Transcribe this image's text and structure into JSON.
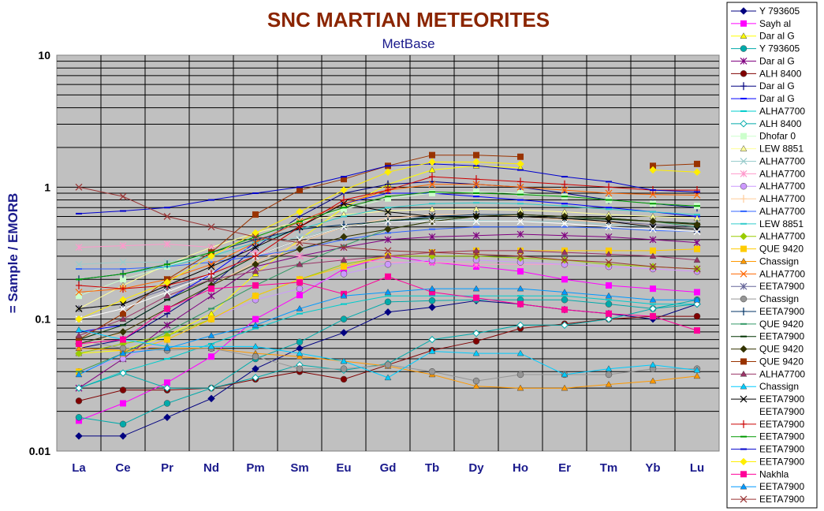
{
  "chart_data": {
    "type": "line",
    "title": "SNC MARTIAN METEORITES",
    "subtitle": "MetBase",
    "ylabel": "= Sample / EMORB",
    "xlabel": "",
    "yscale": "log",
    "ylim": [
      0.01,
      10
    ],
    "yticks": [
      "10",
      "1",
      "0.1",
      "0.01"
    ],
    "grid": true,
    "legend_position": "right",
    "categories": [
      "La",
      "Ce",
      "Pr",
      "Nd",
      "Pm",
      "Sm",
      "Eu",
      "Gd",
      "Tb",
      "Dy",
      "Ho",
      "Er",
      "Tm",
      "Yb",
      "Lu"
    ],
    "series": [
      {
        "name": "Y 793605",
        "color": "#000080",
        "marker": "diamond",
        "values": [
          0.013,
          0.013,
          0.018,
          0.025,
          0.042,
          0.06,
          0.079,
          0.113,
          0.123,
          0.138,
          0.13,
          0.118,
          0.11,
          0.1,
          0.13
        ]
      },
      {
        "name": "Sayh al",
        "color": "#ff00ff",
        "marker": "square",
        "values": [
          0.017,
          0.023,
          0.033,
          0.052,
          0.1,
          0.152,
          0.24,
          0.3,
          0.27,
          0.25,
          0.23,
          0.2,
          0.18,
          0.17,
          0.16
        ]
      },
      {
        "name": "Dar al G",
        "color": "#ffff00",
        "marker": "triangle",
        "values": [
          0.055,
          0.058,
          0.075,
          0.11,
          0.22,
          0.4,
          0.7,
          1.05,
          1.35,
          1.45,
          1.4,
          null,
          null,
          null,
          null
        ]
      },
      {
        "name": "Y 793605",
        "color": "#00aaaa",
        "marker": "circle",
        "values": [
          0.018,
          0.016,
          0.023,
          0.03,
          0.05,
          0.067,
          0.1,
          0.135,
          0.138,
          0.14,
          0.14,
          0.14,
          0.13,
          0.12,
          0.14
        ]
      },
      {
        "name": "Dar al G",
        "color": "#800080",
        "marker": "star",
        "values": [
          0.03,
          0.05,
          0.09,
          0.15,
          0.25,
          0.3,
          0.35,
          0.4,
          0.42,
          0.43,
          0.44,
          0.43,
          0.42,
          0.4,
          0.38
        ]
      },
      {
        "name": "ALH 8400",
        "color": "#800000",
        "marker": "circle",
        "values": [
          0.024,
          0.029,
          0.029,
          0.03,
          0.035,
          0.04,
          0.035,
          0.045,
          0.058,
          0.068,
          0.085,
          0.092,
          0.1,
          0.105,
          0.105
        ]
      },
      {
        "name": "Dar al G",
        "color": "#000080",
        "marker": "plus",
        "values": [
          0.06,
          0.07,
          0.11,
          0.18,
          0.35,
          0.6,
          0.9,
          1.05,
          1.1,
          1.05,
          1.0,
          0.9,
          0.8,
          0.75,
          0.7
        ]
      },
      {
        "name": "Dar al G",
        "color": "#0000ff",
        "marker": "dash",
        "values": [
          0.08,
          0.09,
          0.14,
          0.22,
          0.38,
          0.55,
          0.75,
          0.9,
          0.9,
          0.85,
          0.8,
          0.75,
          0.7,
          0.65,
          0.6
        ]
      },
      {
        "name": "ALHA7700",
        "color": "#00cccc",
        "marker": "dash",
        "values": [
          0.03,
          0.04,
          0.05,
          0.065,
          0.085,
          0.11,
          0.13,
          0.15,
          0.15,
          0.15,
          0.15,
          0.15,
          0.14,
          0.13,
          0.13
        ]
      },
      {
        "name": "ALH 8400",
        "color": "#00aaaa",
        "marker": "open-diamond",
        "values": [
          0.03,
          0.039,
          0.03,
          0.03,
          0.036,
          0.045,
          0.041,
          0.046,
          0.07,
          0.078,
          0.09,
          0.09,
          0.1,
          0.12,
          0.13
        ]
      },
      {
        "name": "Dhofar 0",
        "color": "#ccffcc",
        "marker": "square",
        "values": [
          0.15,
          0.2,
          0.25,
          0.32,
          0.42,
          0.55,
          0.68,
          0.82,
          0.9,
          0.92,
          0.9,
          0.85,
          0.8,
          0.75,
          0.72
        ]
      },
      {
        "name": "LEW 8851",
        "color": "#ffff99",
        "marker": "triangle",
        "values": [
          0.12,
          0.18,
          0.26,
          0.35,
          0.45,
          0.55,
          0.62,
          0.66,
          0.68,
          0.68,
          0.67,
          0.65,
          0.62,
          0.6,
          0.58
        ]
      },
      {
        "name": "ALHA7700",
        "color": "#99cccc",
        "marker": "x",
        "values": [
          0.26,
          0.27,
          0.27,
          0.3,
          0.35,
          0.42,
          0.5,
          0.55,
          0.57,
          0.56,
          0.55,
          0.55,
          0.52,
          0.5,
          0.48
        ]
      },
      {
        "name": "ALHA7700",
        "color": "#ff99cc",
        "marker": "star",
        "values": [
          0.35,
          0.36,
          0.37,
          0.35,
          0.32,
          0.3,
          0.28,
          0.27,
          0.27,
          0.26,
          0.26,
          0.26,
          0.25,
          0.24,
          0.23
        ]
      },
      {
        "name": "ALHA7700",
        "color": "#cc99ff",
        "marker": "circle",
        "values": [
          0.04,
          0.05,
          0.07,
          0.1,
          0.14,
          0.17,
          0.22,
          0.26,
          0.28,
          0.28,
          0.27,
          0.26,
          0.25,
          0.24,
          0.23
        ]
      },
      {
        "name": "ALHA7700",
        "color": "#ffcc99",
        "marker": "plus",
        "values": [
          0.06,
          0.08,
          0.12,
          0.18,
          0.27,
          0.38,
          0.5,
          0.58,
          0.62,
          0.62,
          0.6,
          0.57,
          0.54,
          0.52,
          0.5
        ]
      },
      {
        "name": "ALHA7700",
        "color": "#3366ff",
        "marker": "dash",
        "values": [
          0.24,
          0.24,
          0.25,
          0.27,
          0.3,
          0.34,
          0.4,
          0.45,
          0.48,
          0.5,
          0.5,
          0.5,
          0.49,
          0.47,
          0.46
        ]
      },
      {
        "name": "LEW 8851",
        "color": "#33cccc",
        "marker": "dash",
        "values": [
          0.2,
          0.22,
          0.25,
          0.3,
          0.38,
          0.48,
          0.6,
          0.7,
          0.75,
          0.76,
          0.75,
          0.72,
          0.68,
          0.65,
          0.62
        ]
      },
      {
        "name": "ALHA7700",
        "color": "#99cc00",
        "marker": "diamond",
        "values": [
          0.055,
          0.065,
          0.075,
          0.1,
          0.15,
          0.2,
          0.26,
          0.3,
          0.3,
          0.3,
          0.29,
          0.28,
          0.26,
          0.25,
          0.24
        ]
      },
      {
        "name": "QUE 9420",
        "color": "#ffcc00",
        "marker": "square",
        "values": [
          0.04,
          0.055,
          0.07,
          0.1,
          0.15,
          0.2,
          0.25,
          0.3,
          0.32,
          0.33,
          0.33,
          0.33,
          0.33,
          0.33,
          0.34
        ]
      },
      {
        "name": "Chassign",
        "color": "#ff9900",
        "marker": "triangle",
        "values": [
          0.06,
          0.058,
          0.06,
          0.06,
          0.055,
          0.052,
          0.048,
          0.044,
          0.038,
          0.031,
          0.03,
          0.03,
          0.032,
          0.034,
          0.037
        ]
      },
      {
        "name": "ALHA7700",
        "color": "#ff6600",
        "marker": "x",
        "values": [
          0.16,
          0.17,
          0.2,
          0.26,
          0.38,
          0.55,
          0.75,
          0.95,
          1.05,
          1.05,
          1.0,
          0.95,
          0.9,
          0.88,
          0.87
        ]
      },
      {
        "name": "EETA7900",
        "color": "#666699",
        "marker": "star",
        "values": [
          0.12,
          0.13,
          0.17,
          0.22,
          0.3,
          0.4,
          0.5,
          0.55,
          0.58,
          0.6,
          0.6,
          0.58,
          0.55,
          0.52,
          0.5
        ]
      },
      {
        "name": "Chassign",
        "color": "#969696",
        "marker": "circle",
        "values": [
          0.07,
          0.06,
          0.058,
          0.06,
          0.052,
          0.042,
          0.042,
          0.045,
          0.04,
          0.034,
          0.038,
          0.038,
          0.038,
          0.042,
          0.042
        ]
      },
      {
        "name": "EETA7900",
        "color": "#003366",
        "marker": "plus",
        "values": [
          0.2,
          0.22,
          0.26,
          0.32,
          0.4,
          0.48,
          0.52,
          0.55,
          0.6,
          0.62,
          0.62,
          0.6,
          0.58,
          0.55,
          0.53
        ]
      },
      {
        "name": "QUE 9420",
        "color": "#339966",
        "marker": "dash",
        "values": [
          0.04,
          0.055,
          0.08,
          0.12,
          0.18,
          0.26,
          0.36,
          0.48,
          0.55,
          0.6,
          0.62,
          0.6,
          0.58,
          0.55,
          0.5
        ]
      },
      {
        "name": "EETA7900",
        "color": "#003300",
        "marker": "dash",
        "values": [
          0.07,
          0.09,
          0.14,
          0.2,
          0.3,
          0.4,
          0.5,
          0.56,
          0.58,
          0.6,
          0.6,
          0.58,
          0.57,
          0.55,
          0.53
        ]
      },
      {
        "name": "QUE 9420",
        "color": "#333300",
        "marker": "diamond",
        "values": [
          0.065,
          0.08,
          0.12,
          0.18,
          0.26,
          0.34,
          0.42,
          0.48,
          0.55,
          0.6,
          0.62,
          0.6,
          0.58,
          0.55,
          0.52
        ]
      },
      {
        "name": "QUE 9420",
        "color": "#993300",
        "marker": "square",
        "values": [
          0.07,
          0.11,
          0.2,
          0.32,
          0.62,
          0.95,
          1.15,
          1.45,
          1.75,
          1.75,
          1.7,
          null,
          null,
          1.45,
          1.5
        ]
      },
      {
        "name": "ALHA7700",
        "color": "#993366",
        "marker": "triangle",
        "values": [
          0.075,
          0.1,
          0.15,
          0.2,
          0.23,
          0.26,
          0.28,
          0.3,
          0.32,
          0.33,
          0.33,
          0.32,
          0.31,
          0.3,
          0.28
        ]
      },
      {
        "name": "Chassign",
        "color": "#00ccff",
        "marker": "triangle",
        "values": [
          0.083,
          0.07,
          0.062,
          0.062,
          0.062,
          0.055,
          0.048,
          0.036,
          0.057,
          0.055,
          0.055,
          0.038,
          0.042,
          0.045,
          0.041
        ]
      },
      {
        "name": "EETA7900",
        "color": "#000000",
        "marker": "x",
        "values": [
          0.12,
          0.13,
          0.18,
          0.25,
          0.35,
          0.5,
          0.75,
          0.65,
          0.6,
          0.6,
          0.6,
          0.58,
          0.55,
          0.5,
          0.48
        ]
      },
      {
        "name": "EETA7900",
        "color": "#ffffff",
        "marker": "x",
        "values": [
          0.1,
          0.12,
          0.16,
          0.22,
          0.3,
          0.4,
          0.5,
          0.55,
          0.55,
          0.55,
          0.55,
          0.53,
          0.5,
          0.48,
          0.46
        ]
      },
      {
        "name": "EETA7900",
        "color": "#cc0000",
        "marker": "plus",
        "values": [
          0.18,
          0.17,
          0.18,
          0.22,
          0.3,
          0.5,
          0.8,
          0.95,
          1.2,
          1.15,
          1.1,
          1.05,
          1.0,
          0.95,
          0.95
        ]
      },
      {
        "name": "EETA7900",
        "color": "#009900",
        "marker": "dash",
        "values": [
          0.2,
          0.22,
          0.26,
          0.32,
          0.42,
          0.55,
          0.7,
          0.85,
          0.92,
          0.9,
          0.88,
          0.85,
          0.8,
          0.75,
          0.72
        ]
      },
      {
        "name": "EETA7900",
        "color": "#0000cc",
        "marker": "dash",
        "values": [
          0.63,
          0.66,
          0.7,
          0.8,
          0.9,
          1.0,
          1.2,
          1.45,
          1.5,
          1.45,
          1.35,
          1.2,
          1.1,
          0.95,
          0.92
        ]
      },
      {
        "name": "EETA7900",
        "color": "#ffee00",
        "marker": "diamond",
        "values": [
          0.1,
          0.14,
          0.19,
          0.3,
          0.45,
          0.65,
          0.95,
          1.3,
          1.55,
          1.55,
          1.5,
          null,
          null,
          1.35,
          1.3
        ]
      },
      {
        "name": "Nakhla",
        "color": "#ff0099",
        "marker": "square",
        "values": [
          0.065,
          0.07,
          0.12,
          0.17,
          0.18,
          0.19,
          0.155,
          0.21,
          0.16,
          0.145,
          0.13,
          0.118,
          0.11,
          0.105,
          0.082
        ]
      },
      {
        "name": "EETA7900",
        "color": "#0099ff",
        "marker": "triangle",
        "values": [
          0.038,
          0.055,
          0.06,
          0.075,
          0.09,
          0.12,
          0.15,
          0.16,
          0.17,
          0.17,
          0.17,
          0.16,
          0.15,
          0.14,
          0.14
        ]
      },
      {
        "name": "EETA7900",
        "color": "#993333",
        "marker": "x",
        "values": [
          1.0,
          0.85,
          0.6,
          0.5,
          0.42,
          0.38,
          0.35,
          0.33,
          0.32,
          0.31,
          0.3,
          0.28,
          0.27,
          0.25,
          0.24
        ]
      }
    ]
  }
}
